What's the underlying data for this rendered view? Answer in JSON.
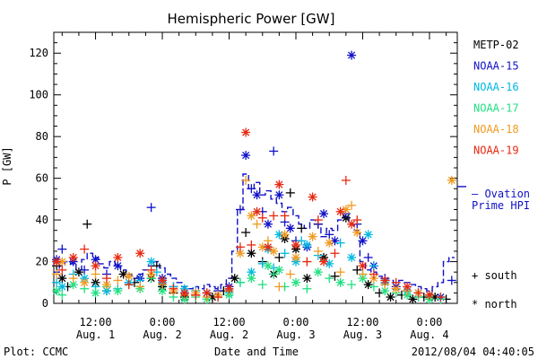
{
  "chart_data": {
    "type": "scatter",
    "title": "Hemispheric Power [GW]",
    "xlabel": "Date and Time",
    "ylabel": "P [GW]",
    "ylim": [
      0,
      130
    ],
    "yticks": [
      0,
      20,
      40,
      60,
      80,
      100,
      120
    ],
    "x_unit": "hours since 2012-08-01 00:00 UT",
    "xlim": [
      4.5,
      77
    ],
    "xticks": [
      {
        "x": 12,
        "line1": "12:00",
        "line2": "Aug. 1"
      },
      {
        "x": 24,
        "line1": "0:00",
        "line2": "Aug. 2"
      },
      {
        "x": 36,
        "line1": "12:00",
        "line2": "Aug. 2"
      },
      {
        "x": 48,
        "line1": "0:00",
        "line2": "Aug. 3"
      },
      {
        "x": 60,
        "line1": "12:00",
        "line2": "Aug. 3"
      },
      {
        "x": 72,
        "line1": "0:00",
        "line2": "Aug. 4"
      }
    ],
    "series": [
      {
        "name": "METP-02",
        "color": "#000000",
        "values": [
          [
            5,
            18
          ],
          [
            6,
            12
          ],
          [
            7,
            8
          ],
          [
            9,
            15
          ],
          [
            10.5,
            38
          ],
          [
            12,
            10
          ],
          [
            14,
            6
          ],
          [
            17,
            14
          ],
          [
            19,
            10
          ],
          [
            22,
            12
          ],
          [
            23,
            18
          ],
          [
            24,
            8
          ],
          [
            26,
            5
          ],
          [
            28,
            3
          ],
          [
            30,
            4
          ],
          [
            33,
            3
          ],
          [
            35,
            6
          ],
          [
            37,
            12
          ],
          [
            39,
            34
          ],
          [
            40,
            24
          ],
          [
            42,
            20
          ],
          [
            44,
            14
          ],
          [
            45,
            22
          ],
          [
            46,
            31
          ],
          [
            47,
            53
          ],
          [
            48,
            26
          ],
          [
            49,
            36
          ],
          [
            50,
            12
          ],
          [
            52,
            38
          ],
          [
            53,
            22
          ],
          [
            55,
            13
          ],
          [
            57,
            41
          ],
          [
            59,
            16
          ],
          [
            61,
            9
          ],
          [
            63,
            5
          ],
          [
            65,
            3
          ],
          [
            67,
            4
          ],
          [
            69,
            2
          ],
          [
            71,
            3
          ],
          [
            73,
            3
          ],
          [
            75,
            2
          ]
        ]
      },
      {
        "name": "NOAA-15",
        "color": "#1010c8",
        "values": [
          [
            5,
            21
          ],
          [
            6,
            26
          ],
          [
            8,
            20
          ],
          [
            10,
            16
          ],
          [
            12,
            21
          ],
          [
            14,
            14
          ],
          [
            16,
            18
          ],
          [
            18,
            10
          ],
          [
            20,
            12
          ],
          [
            22,
            46
          ],
          [
            24,
            12
          ],
          [
            26,
            8
          ],
          [
            28,
            5
          ],
          [
            30,
            4
          ],
          [
            32,
            5
          ],
          [
            34,
            6
          ],
          [
            36,
            8
          ],
          [
            38,
            45
          ],
          [
            39,
            71
          ],
          [
            40,
            55
          ],
          [
            41,
            52
          ],
          [
            42,
            44
          ],
          [
            43,
            38
          ],
          [
            44,
            73
          ],
          [
            45,
            52
          ],
          [
            46,
            39
          ],
          [
            47,
            36
          ],
          [
            48,
            30
          ],
          [
            50,
            27
          ],
          [
            52,
            38
          ],
          [
            53,
            43
          ],
          [
            54,
            33
          ],
          [
            55,
            30
          ],
          [
            57,
            43
          ],
          [
            58,
            119
          ],
          [
            59,
            38
          ],
          [
            60,
            30
          ],
          [
            61,
            22
          ],
          [
            62,
            18
          ],
          [
            64,
            12
          ],
          [
            66,
            8
          ],
          [
            68,
            6
          ],
          [
            70,
            5
          ],
          [
            72,
            4
          ],
          [
            74,
            3
          ],
          [
            76,
            11
          ]
        ]
      },
      {
        "name": "NOAA-16",
        "color": "#00b8e0",
        "values": [
          [
            5,
            10
          ],
          [
            6,
            8
          ],
          [
            8,
            14
          ],
          [
            10,
            12
          ],
          [
            12,
            8
          ],
          [
            14,
            6
          ],
          [
            16,
            7
          ],
          [
            18,
            10
          ],
          [
            20,
            11
          ],
          [
            22,
            20
          ],
          [
            23,
            15
          ],
          [
            24,
            10
          ],
          [
            26,
            8
          ],
          [
            28,
            7
          ],
          [
            30,
            6
          ],
          [
            32,
            5
          ],
          [
            34,
            4
          ],
          [
            36,
            5
          ],
          [
            38,
            10
          ],
          [
            40,
            15
          ],
          [
            42,
            19
          ],
          [
            43,
            26
          ],
          [
            44,
            17
          ],
          [
            45,
            33
          ],
          [
            46,
            24
          ],
          [
            48,
            20
          ],
          [
            49,
            30
          ],
          [
            50,
            28
          ],
          [
            52,
            23
          ],
          [
            54,
            19
          ],
          [
            56,
            29
          ],
          [
            58,
            22
          ],
          [
            60,
            14
          ],
          [
            61,
            33
          ],
          [
            62,
            18
          ],
          [
            64,
            10
          ],
          [
            66,
            7
          ],
          [
            68,
            6
          ],
          [
            70,
            5
          ],
          [
            72,
            4
          ],
          [
            74,
            3
          ]
        ]
      },
      {
        "name": "NOAA-17",
        "color": "#20e080",
        "values": [
          [
            5,
            6
          ],
          [
            6,
            4
          ],
          [
            8,
            9
          ],
          [
            10,
            7
          ],
          [
            12,
            5
          ],
          [
            14,
            8
          ],
          [
            16,
            6
          ],
          [
            18,
            9
          ],
          [
            20,
            7
          ],
          [
            22,
            12
          ],
          [
            24,
            6
          ],
          [
            26,
            3
          ],
          [
            28,
            2
          ],
          [
            30,
            3
          ],
          [
            32,
            2
          ],
          [
            34,
            3
          ],
          [
            36,
            4
          ],
          [
            38,
            10
          ],
          [
            40,
            12
          ],
          [
            42,
            9
          ],
          [
            43,
            18
          ],
          [
            44,
            14
          ],
          [
            45,
            16
          ],
          [
            46,
            8
          ],
          [
            48,
            10
          ],
          [
            50,
            7
          ],
          [
            52,
            15
          ],
          [
            54,
            12
          ],
          [
            56,
            10
          ],
          [
            58,
            9
          ],
          [
            60,
            12
          ],
          [
            62,
            8
          ],
          [
            64,
            6
          ],
          [
            66,
            5
          ],
          [
            68,
            4
          ],
          [
            70,
            3
          ],
          [
            72,
            2
          ],
          [
            74,
            2
          ]
        ]
      },
      {
        "name": "NOAA-18",
        "color": "#f09a20",
        "values": [
          [
            5,
            14
          ],
          [
            6,
            20
          ],
          [
            8,
            12
          ],
          [
            10,
            10
          ],
          [
            12,
            14
          ],
          [
            14,
            9
          ],
          [
            16,
            11
          ],
          [
            18,
            13
          ],
          [
            20,
            8
          ],
          [
            22,
            14
          ],
          [
            24,
            9
          ],
          [
            26,
            6
          ],
          [
            28,
            4
          ],
          [
            30,
            5
          ],
          [
            32,
            3
          ],
          [
            34,
            4
          ],
          [
            36,
            6
          ],
          [
            38,
            24
          ],
          [
            39,
            59
          ],
          [
            40,
            42
          ],
          [
            41,
            38
          ],
          [
            42,
            27
          ],
          [
            43,
            30
          ],
          [
            44,
            25
          ],
          [
            45,
            8
          ],
          [
            46,
            33
          ],
          [
            47,
            14
          ],
          [
            48,
            22
          ],
          [
            50,
            20
          ],
          [
            51,
            32
          ],
          [
            52,
            25
          ],
          [
            54,
            29
          ],
          [
            56,
            15
          ],
          [
            57,
            45
          ],
          [
            58,
            47
          ],
          [
            59,
            34
          ],
          [
            60,
            14
          ],
          [
            62,
            12
          ],
          [
            64,
            9
          ],
          [
            66,
            7
          ],
          [
            68,
            6
          ],
          [
            70,
            5
          ],
          [
            72,
            4
          ],
          [
            76,
            59
          ]
        ]
      },
      {
        "name": "NOAA-19",
        "color": "#e82810",
        "values": [
          [
            5,
            20
          ],
          [
            6,
            16
          ],
          [
            8,
            22
          ],
          [
            10,
            26
          ],
          [
            12,
            18
          ],
          [
            14,
            12
          ],
          [
            16,
            22
          ],
          [
            18,
            9
          ],
          [
            20,
            24
          ],
          [
            22,
            16
          ],
          [
            24,
            11
          ],
          [
            26,
            7
          ],
          [
            28,
            5
          ],
          [
            30,
            4
          ],
          [
            32,
            5
          ],
          [
            34,
            3
          ],
          [
            36,
            7
          ],
          [
            38,
            27
          ],
          [
            39,
            82
          ],
          [
            40,
            28
          ],
          [
            41,
            44
          ],
          [
            42,
            41
          ],
          [
            43,
            27
          ],
          [
            44,
            42
          ],
          [
            45,
            57
          ],
          [
            46,
            42
          ],
          [
            48,
            28
          ],
          [
            50,
            20
          ],
          [
            51,
            51
          ],
          [
            52,
            40
          ],
          [
            53,
            20
          ],
          [
            55,
            24
          ],
          [
            56,
            44
          ],
          [
            57,
            59
          ],
          [
            58,
            38
          ],
          [
            59,
            40
          ],
          [
            60,
            18
          ],
          [
            62,
            14
          ],
          [
            64,
            11
          ],
          [
            66,
            10
          ],
          [
            68,
            8
          ],
          [
            70,
            5
          ],
          [
            72,
            4
          ],
          [
            74,
            3
          ]
        ]
      }
    ],
    "ovation": {
      "name": "Ovation Prime HPI",
      "color": "#1010c8",
      "values": [
        [
          5,
          15
        ],
        [
          6,
          18
        ],
        [
          7,
          20
        ],
        [
          8,
          19
        ],
        [
          9,
          16
        ],
        [
          10,
          21
        ],
        [
          11,
          24
        ],
        [
          12,
          22
        ],
        [
          13,
          19
        ],
        [
          14,
          17
        ],
        [
          15,
          20
        ],
        [
          16,
          18
        ],
        [
          17,
          16
        ],
        [
          18,
          14
        ],
        [
          19,
          12
        ],
        [
          20,
          14
        ],
        [
          21,
          16
        ],
        [
          22,
          18
        ],
        [
          23,
          20
        ],
        [
          24,
          17
        ],
        [
          25,
          14
        ],
        [
          26,
          12
        ],
        [
          27,
          10
        ],
        [
          28,
          8
        ],
        [
          29,
          7
        ],
        [
          30,
          8
        ],
        [
          31,
          7
        ],
        [
          32,
          9
        ],
        [
          33,
          8
        ],
        [
          34,
          7
        ],
        [
          35,
          9
        ],
        [
          36,
          12
        ],
        [
          37,
          25
        ],
        [
          38,
          45
        ],
        [
          39,
          62
        ],
        [
          40,
          55
        ],
        [
          41,
          58
        ],
        [
          42,
          52
        ],
        [
          43,
          54
        ],
        [
          44,
          50
        ],
        [
          45,
          48
        ],
        [
          46,
          44
        ],
        [
          47,
          46
        ],
        [
          48,
          42
        ],
        [
          49,
          38
        ],
        [
          50,
          36
        ],
        [
          51,
          40
        ],
        [
          52,
          38
        ],
        [
          53,
          32
        ],
        [
          54,
          36
        ],
        [
          55,
          35
        ],
        [
          56,
          40
        ],
        [
          57,
          42
        ],
        [
          58,
          38
        ],
        [
          59,
          35
        ],
        [
          60,
          20
        ],
        [
          61,
          16
        ],
        [
          62,
          15
        ],
        [
          63,
          13
        ],
        [
          64,
          12
        ],
        [
          65,
          11
        ],
        [
          66,
          10
        ],
        [
          67,
          11
        ],
        [
          68,
          10
        ],
        [
          69,
          9
        ],
        [
          70,
          8
        ],
        [
          71,
          7
        ],
        [
          72,
          6
        ],
        [
          73,
          8
        ],
        [
          74,
          10
        ],
        [
          75,
          20
        ],
        [
          76,
          22
        ]
      ]
    },
    "markers": {
      "south": "+",
      "north": "*"
    },
    "legend_position": "right",
    "grid": false
  },
  "legend": {
    "ovation_line1": "– Ovation",
    "ovation_line2": "Prime HPI",
    "south_label": "+ south",
    "north_label": "* north"
  },
  "footer": {
    "left": "Plot: CCMC",
    "right": "2012/08/04 04:40:05"
  }
}
